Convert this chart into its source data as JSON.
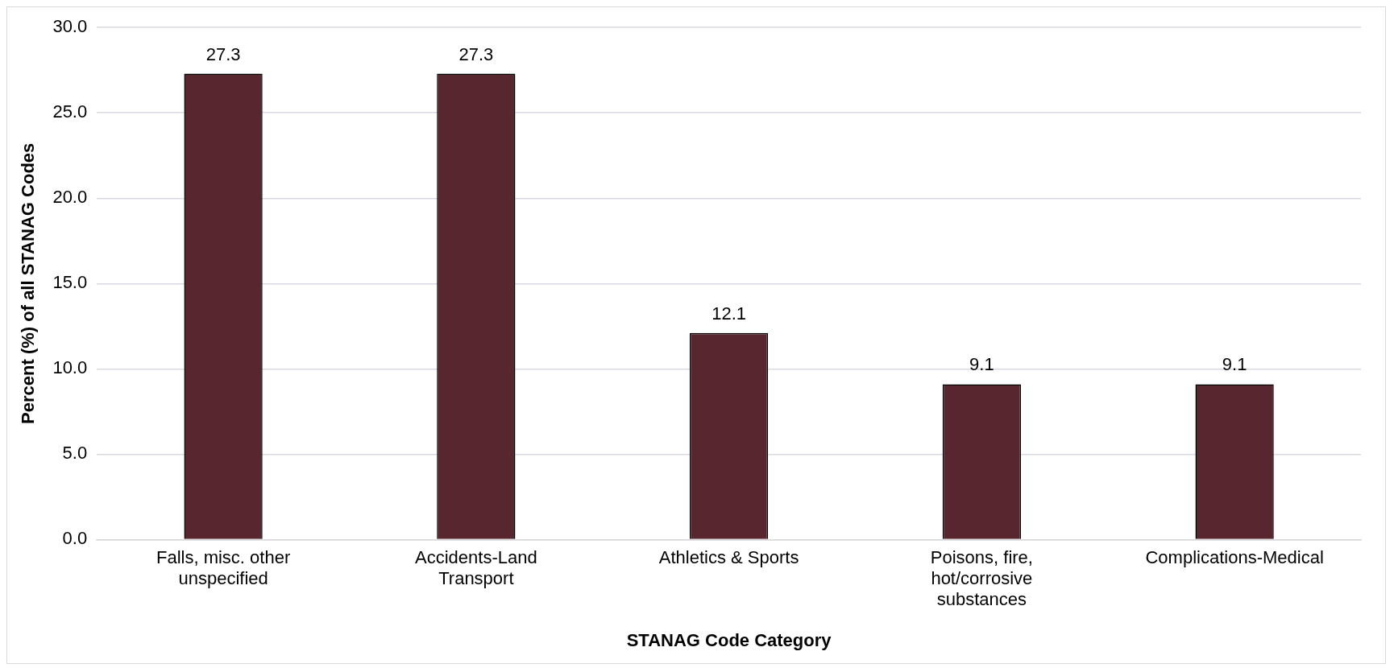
{
  "chart_data": {
    "type": "bar",
    "xlabel": "STANAG Code Category",
    "ylabel": "Percent (%) of all STANAG Codes",
    "categories": [
      "Falls, misc. other unspecified",
      "Accidents-Land Transport",
      "Athletics & Sports",
      "Poisons, fire, hot/corrosive substances",
      "Complications-Medical"
    ],
    "values": [
      27.3,
      27.3,
      12.1,
      9.1,
      9.1
    ],
    "color": "#58262e",
    "ylim": [
      0,
      30
    ],
    "yticks": [
      {
        "value": 0,
        "label": "0.0"
      },
      {
        "value": 5,
        "label": "5.0"
      },
      {
        "value": 10,
        "label": "10.0"
      },
      {
        "value": 15,
        "label": "15.0"
      },
      {
        "value": 20,
        "label": "20.0"
      },
      {
        "value": 25,
        "label": "25.0"
      },
      {
        "value": 30,
        "label": "30.0"
      }
    ],
    "grid": "y",
    "data_labels": true,
    "legend": false
  }
}
